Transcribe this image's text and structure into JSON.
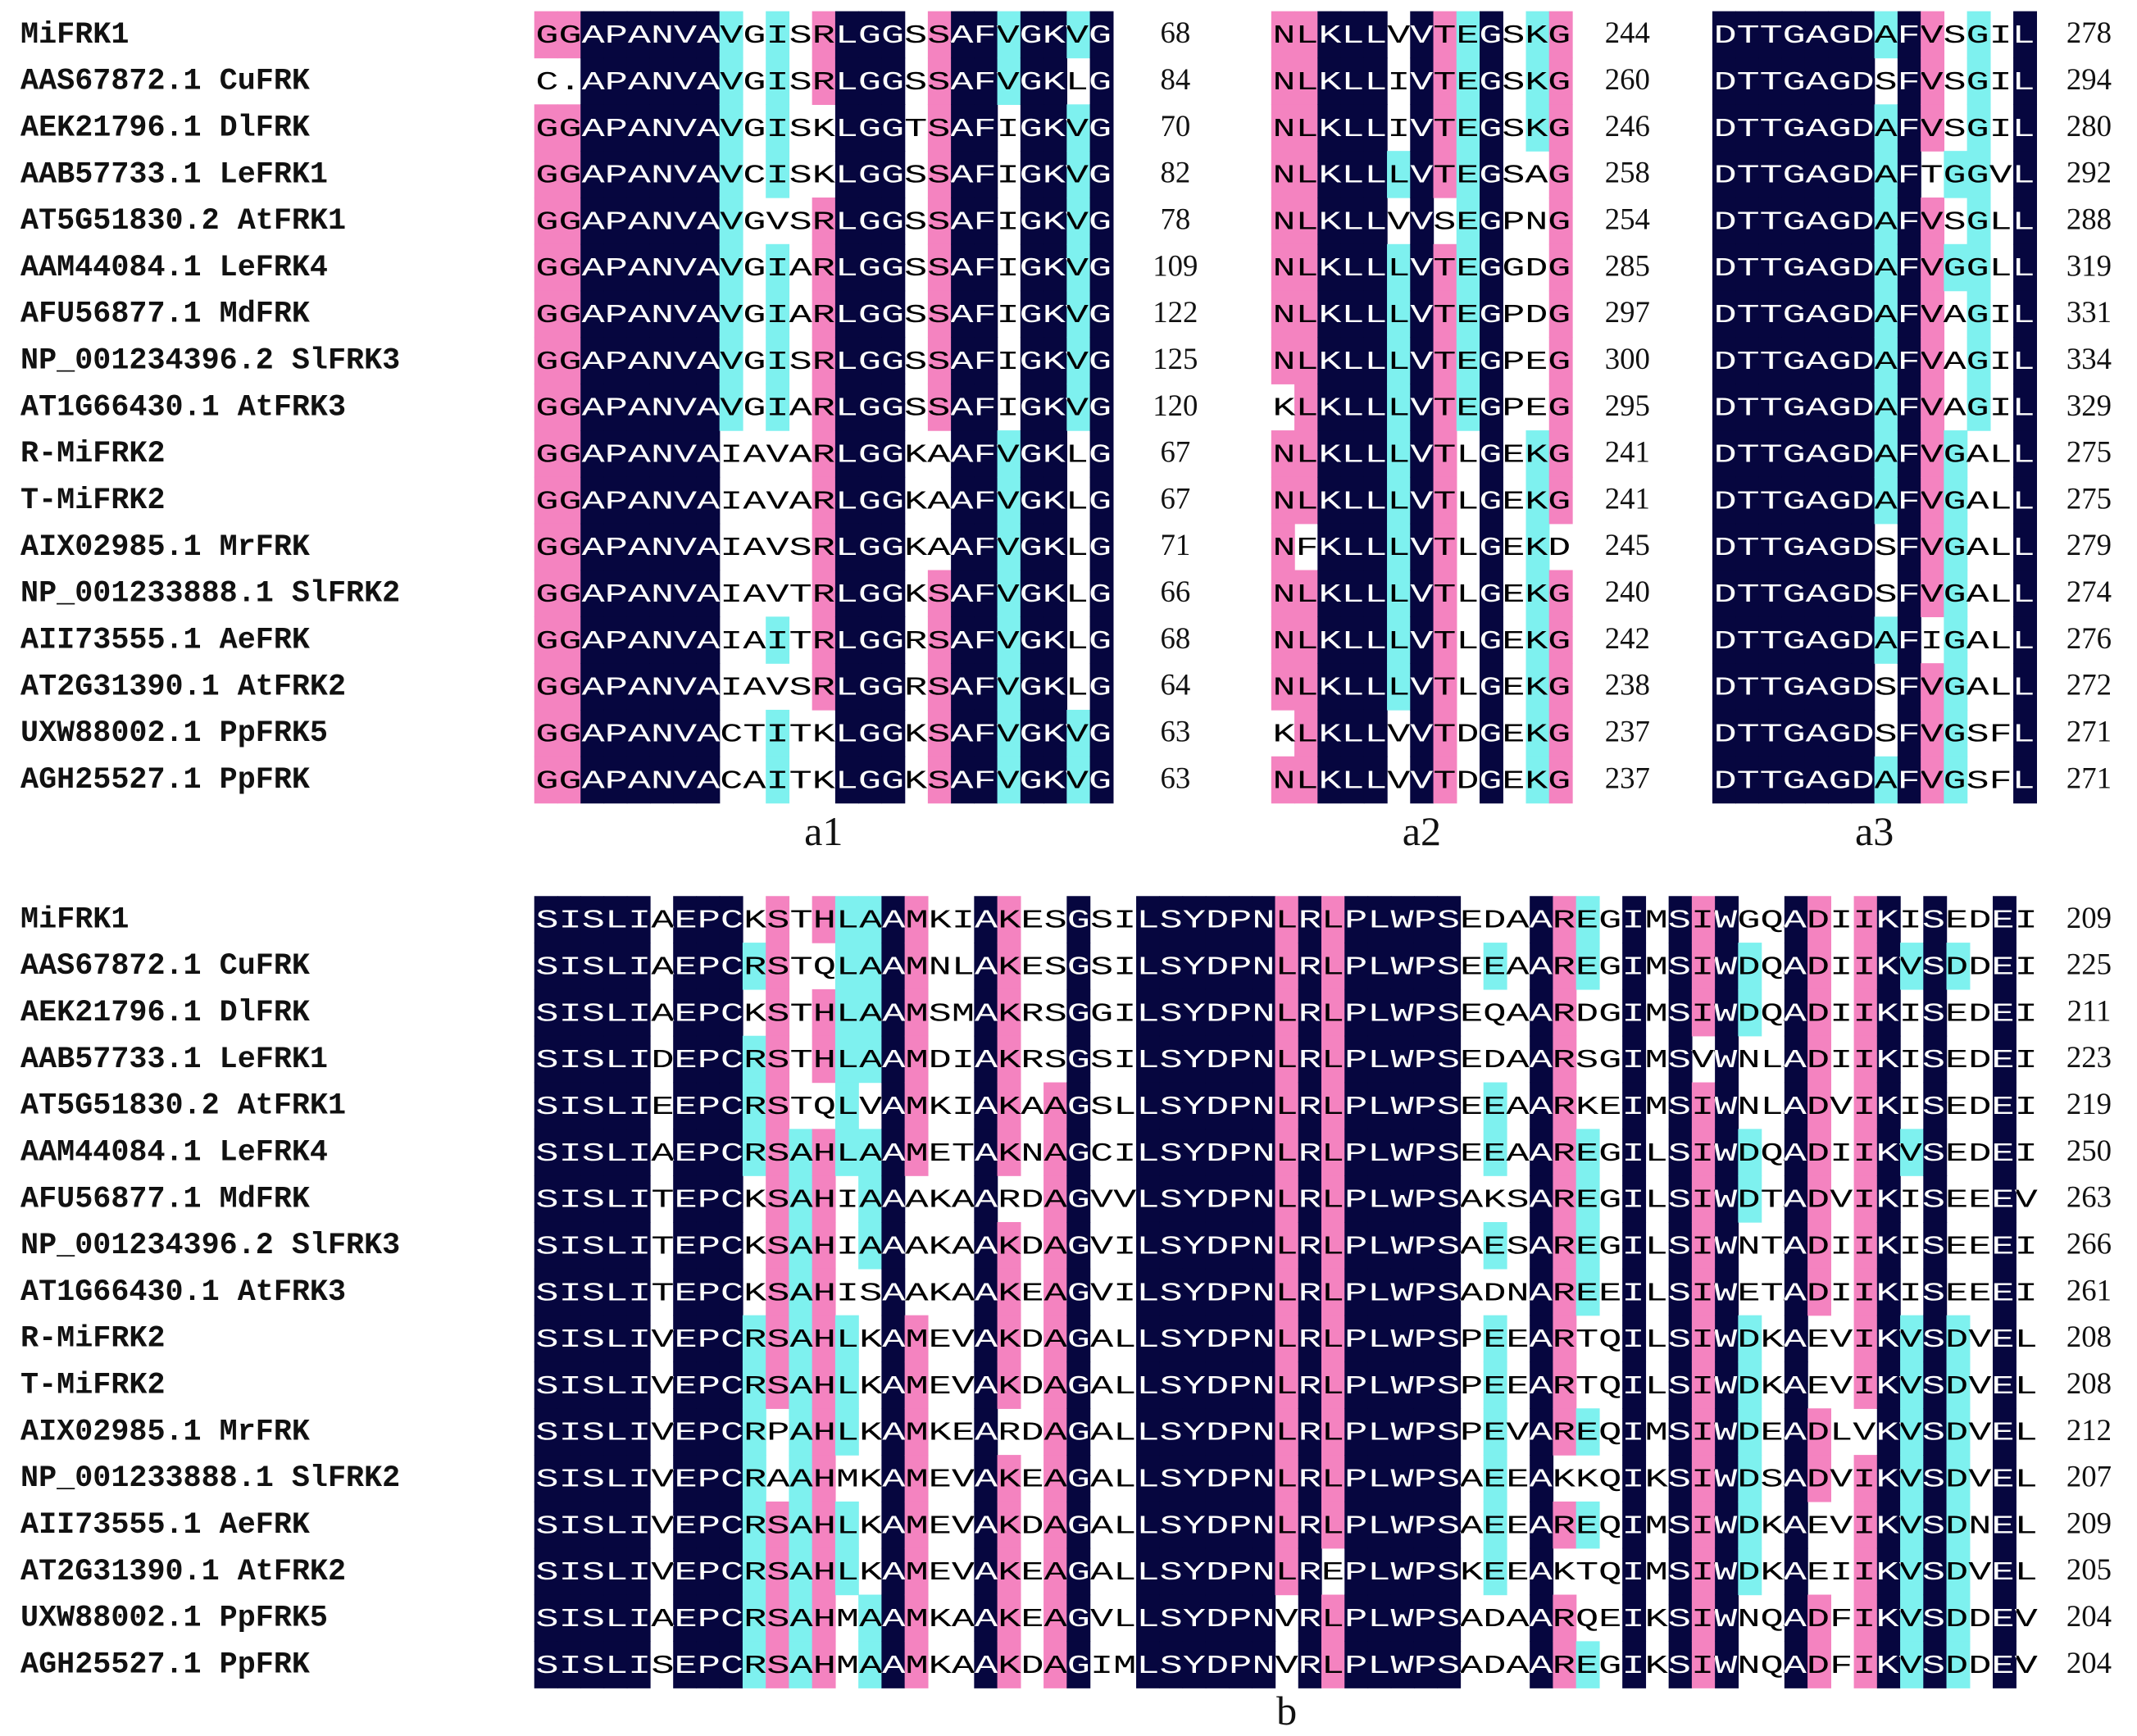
{
  "top": {
    "names": [
      "MiFRK1",
      "AAS67872.1 CuFRK",
      "AEK21796.1 DlFRK",
      "AAB57733.1 LeFRK1",
      "AT5G51830.2 AtFRK1",
      "AAM44084.1 LeFRK4",
      "AFU56877.1 MdFRK",
      "NP_001234396.2 SlFRK3",
      "AT1G66430.1 AtFRK3",
      "R-MiFRK2",
      "T-MiFRK2",
      "AIX02985.1 MrFRK",
      "NP_001233888.1 SlFRK2",
      "AII73555.1 AeFRK",
      "AT2G31390.1 AtFRK2",
      "UXW88002.1 PpFRK5",
      "AGH25527.1 PpFRK"
    ],
    "blocks": [
      {
        "label": "a1",
        "rows": [
          {
            "seq": "GGAPANVAVGISRLGGSSAFVGKVG",
            "end": 68
          },
          {
            "seq": "C.APANVAVGISRLGGSSAFVGKLG",
            "end": 84
          },
          {
            "seq": "GGAPANVAVGISKLGGTSAFIGKVG",
            "end": 70
          },
          {
            "seq": "GGAPANVAVCISKLGGSSAFIGKVG",
            "end": 82
          },
          {
            "seq": "GGAPANVAVGVSRLGGSSAFIGKVG",
            "end": 78
          },
          {
            "seq": "GGAPANVAVGIARLGGSSAFIGKVG",
            "end": 109
          },
          {
            "seq": "GGAPANVAVGIARLGGSSAFIGKVG",
            "end": 122
          },
          {
            "seq": "GGAPANVAVGISRLGGSSAFIGKVG",
            "end": 125
          },
          {
            "seq": "GGAPANVAVGIARLGGSSAFIGKVG",
            "end": 120
          },
          {
            "seq": "GGAPANVAIAVARLGGKAAFVGKLG",
            "end": 67
          },
          {
            "seq": "GGAPANVAIAVARLGGKAAFVGKLG",
            "end": 67
          },
          {
            "seq": "GGAPANVAIAVSRLGGKAAFVGKLG",
            "end": 71
          },
          {
            "seq": "GGAPANVAIAVTRLGGKSAFVGKLG",
            "end": 66
          },
          {
            "seq": "GGAPANVAIAITRLGGRSAFVGKLG",
            "end": 68
          },
          {
            "seq": "GGAPANVAIAVSRLGGRSAFVGKLG",
            "end": 64
          },
          {
            "seq": "GGAPANVACTITKLGGKSAFVGKVG",
            "end": 63
          },
          {
            "seq": "GGAPANVACAITKLGGKSAFVGKVG",
            "end": 63
          }
        ]
      },
      {
        "label": "a2",
        "rows": [
          {
            "seq": "NLKLLVVTEGSKG",
            "end": 244
          },
          {
            "seq": "NLKLLIVTEGSKG",
            "end": 260
          },
          {
            "seq": "NLKLLIVTEGSKG",
            "end": 246
          },
          {
            "seq": "NLKLLLVTEGSAG",
            "end": 258
          },
          {
            "seq": "NLKLLVVSEGPNG",
            "end": 254
          },
          {
            "seq": "NLKLLLVTEGGDG",
            "end": 285
          },
          {
            "seq": "NLKLLLVTEGPDG",
            "end": 297
          },
          {
            "seq": "NLKLLLVTEGPEG",
            "end": 300
          },
          {
            "seq": "KLKLLLVTEGPEG",
            "end": 295
          },
          {
            "seq": "NLKLLLVTLGEKG",
            "end": 241
          },
          {
            "seq": "NLKLLLVTLGEKG",
            "end": 241
          },
          {
            "seq": "NFKLLLVTLGEKD",
            "end": 245
          },
          {
            "seq": "NLKLLLVTLGEKG",
            "end": 240
          },
          {
            "seq": "NLKLLLVTLGEKG",
            "end": 242
          },
          {
            "seq": "NLKLLLVTLGEKG",
            "end": 238
          },
          {
            "seq": "KLKLLVVTDGEKG",
            "end": 237
          },
          {
            "seq": "NLKLLVVTDGEKG",
            "end": 237
          }
        ]
      },
      {
        "label": "a3",
        "rows": [
          {
            "seq": "DTTGAGDAFVSGIL",
            "end": 278
          },
          {
            "seq": "DTTGAGDSFVSGIL",
            "end": 294
          },
          {
            "seq": "DTTGAGDAFVSGIL",
            "end": 280
          },
          {
            "seq": "DTTGAGDAFTGGVL",
            "end": 292
          },
          {
            "seq": "DTTGAGDAFVSGLL",
            "end": 288
          },
          {
            "seq": "DTTGAGDAFVGGLL",
            "end": 319
          },
          {
            "seq": "DTTGAGDAFVAGIL",
            "end": 331
          },
          {
            "seq": "DTTGAGDAFVAGIL",
            "end": 334
          },
          {
            "seq": "DTTGAGDAFVAGIL",
            "end": 329
          },
          {
            "seq": "DTTGAGDAFVGALL",
            "end": 275
          },
          {
            "seq": "DTTGAGDAFVGALL",
            "end": 275
          },
          {
            "seq": "DTTGAGDSFVGALL",
            "end": 279
          },
          {
            "seq": "DTTGAGDSFVGALL",
            "end": 274
          },
          {
            "seq": "DTTGAGDAFIGALL",
            "end": 276
          },
          {
            "seq": "DTTGAGDSFVGALL",
            "end": 272
          },
          {
            "seq": "DTTGAGDSFVGSFL",
            "end": 271
          },
          {
            "seq": "DTTGAGDAFVGSFL",
            "end": 271
          }
        ]
      }
    ]
  },
  "bottom": {
    "names": [
      "MiFRK1",
      "AAS67872.1 CuFRK",
      "AEK21796.1 DlFRK",
      "AAB57733.1 LeFRK1",
      "AT5G51830.2 AtFRK1",
      "AAM44084.1 LeFRK4",
      "AFU56877.1 MdFRK",
      "NP_001234396.2 SlFRK3",
      "AT1G66430.1 AtFRK3",
      "R-MiFRK2",
      "T-MiFRK2",
      "AIX02985.1 MrFRK",
      "NP_001233888.1 SlFRK2",
      "AII73555.1 AeFRK",
      "AT2G31390.1 AtFRK2",
      "UXW88002.1 PpFRK5",
      "AGH25527.1 PpFRK"
    ],
    "blocks": [
      {
        "label": "b",
        "rows": [
          {
            "seq": "SISLIAEPCKSTHLAAMKIAKESGSILSYDPNLRLPLWPSEDAAREGIMSIWGQADIIKISEDEI",
            "end": 209
          },
          {
            "seq": "SISLIAEPCRSTQLAAMNLAKESGSILSYDPNLRLPLWPSEEAAREGIMSIWDQADIIKVSDDEI",
            "end": 225
          },
          {
            "seq": "SISLIAEPCKSTHLAAMSMAKRSGGILSYDPNLRLPLWPSEQAARDGIMSIWDQADIIKISEDEI",
            "end": 211
          },
          {
            "seq": "SISLIDEPCRSTHLAAMDIAKRSGSILSYDPNLRLPLWPSEDAARSGIMSVWNLADIIKISEDEI",
            "end": 223
          },
          {
            "seq": "SISLIEEPCRSTQLVAMKIAKAAGSLLSYDPNLRLPLWPSEEAARKEIMSIWNLADVIKISEDEI",
            "end": 219
          },
          {
            "seq": "SISLIAEPCRSAHLAAMETAKNAGCILSYDPNLRLPLWPSEEAAREGILSIWDQADIIKVSEDEI",
            "end": 250
          },
          {
            "seq": "SISLITEPCKSAHIAAAKAARDAGVVLSYDPNLRLPLWPSAKSAREGILSIWDTADVIKISEEEV",
            "end": 263
          },
          {
            "seq": "SISLITEPCKSAHIAAAKAAKDAGVILSYDPNLRLPLWPSAESAREGILSIWNTADIIKISEEEI",
            "end": 266
          },
          {
            "seq": "SISLITEPCKSAHISAAKAAKEAGVILSYDPNLRLPLWPSADNAREEILSIWETADIIKISEEEI",
            "end": 261
          },
          {
            "seq": "SISLIVEPCRSAHLKAMEVAKDAGALLSYDPNLRLPLWPSPEEARTQILSIWDKAEVIKVSDVEL",
            "end": 208
          },
          {
            "seq": "SISLIVEPCRSAHLKAMEVAKDAGALLSYDPNLRLPLWPSPEEARTQILSIWDKAEVIKVSDVEL",
            "end": 208
          },
          {
            "seq": "SISLIVEPCRPAHLKAMKEARDAGALLSYDPNLRLPLWPSPEVAREQIMSIWDEADLVKVSDVEL",
            "end": 212
          },
          {
            "seq": "SISLIVEPCRAAHMKAMEVAKEAGALLSYDPNLRLPLWPSAEEAKKQIKSIWDSADVIKVSDVEL",
            "end": 207
          },
          {
            "seq": "SISLIVEPCRSAHLKAMEVAKDAGALLSYDPNLRLPLWPSAEEAREQIMSIWDKAEVIKVSDNEL",
            "end": 209
          },
          {
            "seq": "SISLIVEPCRSAHLKAMEVAKEAGALLSYDPNLREPLWPSKEEAKTQIMSIWDKAEIIKVSDVEL",
            "end": 205
          },
          {
            "seq": "SISLIAEPCRSAHMAAMKAAKEAGVLLSYDPNVRLPLWPSADAARQEIKSIWNQADFIKVSDDEV",
            "end": 204
          },
          {
            "seq": "SISLISEPCRSAHMAAMKAAKDAGIMLSYDPNVRLPLWPSADAAREGIKSIWNQADFIKVSDDEV",
            "end": 204
          }
        ]
      }
    ]
  }
}
